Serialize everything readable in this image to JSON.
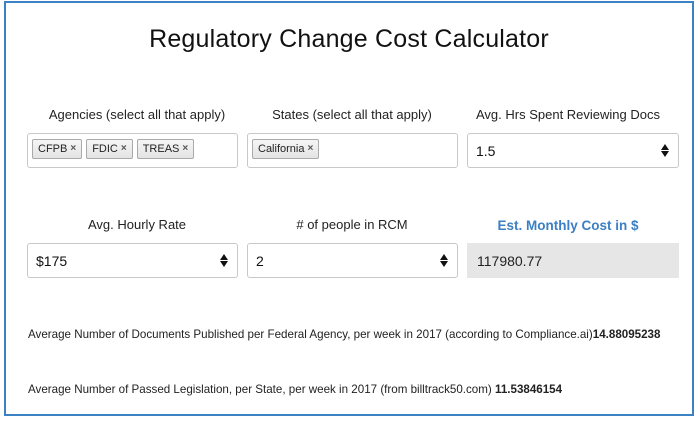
{
  "title": "Regulatory Change Cost Calculator",
  "agencies": {
    "label": "Agencies (select all that apply)",
    "tags": [
      "CFPB",
      "FDIC",
      "TREAS"
    ]
  },
  "states": {
    "label": "States (select all that apply)",
    "tags": [
      "California"
    ]
  },
  "hours": {
    "label": "Avg. Hrs Spent Reviewing Docs",
    "value": "1.5"
  },
  "rate": {
    "label": "Avg. Hourly Rate",
    "value": "$175"
  },
  "people": {
    "label": "# of people in RCM",
    "value": "2"
  },
  "cost": {
    "label": "Est. Monthly Cost in $",
    "value": "117980.77"
  },
  "stats": {
    "federal_text": "Average Number of Documents Published per Federal Agency, per week in 2017 (according to Compliance.ai)",
    "federal_value": "14.88095238",
    "state_text": "Average Number of Passed Legislation, per State, per week in 2017 (from billtrack50.com)",
    "state_value": "11.53846154"
  },
  "colors": {
    "accent": "#3b7fc4",
    "border": "#3b82c4",
    "readonly_bg": "#e6e6e6"
  },
  "icons": {
    "remove": "×",
    "spinner": "up-down-arrows-icon"
  }
}
